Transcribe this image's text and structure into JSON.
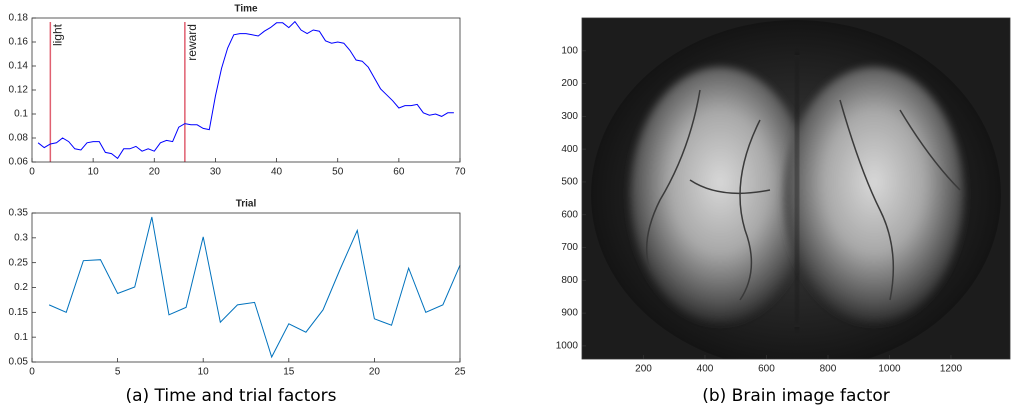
{
  "chart_data": [
    {
      "type": "line",
      "title": "Time",
      "x": [
        1,
        2,
        3,
        4,
        5,
        6,
        7,
        8,
        9,
        10,
        11,
        12,
        13,
        14,
        15,
        16,
        17,
        18,
        19,
        20,
        21,
        22,
        23,
        24,
        25,
        26,
        27,
        28,
        29,
        30,
        31,
        32,
        33,
        34,
        35,
        36,
        37,
        38,
        39,
        40,
        41,
        42,
        43,
        44,
        45,
        46,
        47,
        48,
        49,
        50,
        51,
        52,
        53,
        54,
        55,
        56,
        57,
        58,
        59,
        60,
        61,
        62,
        63,
        64,
        65,
        66,
        67,
        68,
        69
      ],
      "values": [
        0.076,
        0.072,
        0.075,
        0.076,
        0.08,
        0.077,
        0.071,
        0.07,
        0.076,
        0.077,
        0.077,
        0.068,
        0.067,
        0.063,
        0.071,
        0.071,
        0.073,
        0.069,
        0.071,
        0.069,
        0.076,
        0.078,
        0.077,
        0.089,
        0.092,
        0.091,
        0.091,
        0.088,
        0.087,
        0.115,
        0.138,
        0.155,
        0.166,
        0.167,
        0.167,
        0.166,
        0.165,
        0.169,
        0.172,
        0.176,
        0.176,
        0.172,
        0.177,
        0.17,
        0.167,
        0.17,
        0.169,
        0.161,
        0.159,
        0.16,
        0.159,
        0.153,
        0.145,
        0.144,
        0.139,
        0.13,
        0.121,
        0.116,
        0.111,
        0.105,
        0.107,
        0.107,
        0.108,
        0.101,
        0.099,
        0.1,
        0.098,
        0.101,
        0.101
      ],
      "color": "#0000ff",
      "annotations": [
        {
          "x": 3,
          "label": "light"
        },
        {
          "x": 25,
          "label": "reward"
        }
      ],
      "annotation_color": "#e06070",
      "xlim": [
        0,
        70
      ],
      "xticks": [
        0,
        10,
        20,
        30,
        40,
        50,
        60,
        70
      ],
      "ylim": [
        0.06,
        0.18
      ],
      "yticks": [
        0.06,
        0.08,
        0.1,
        0.12,
        0.14,
        0.16,
        0.18
      ]
    },
    {
      "type": "line",
      "title": "Trial",
      "x": [
        1,
        2,
        3,
        4,
        5,
        6,
        7,
        8,
        9,
        10,
        11,
        12,
        13,
        14,
        15,
        16,
        17,
        18,
        19,
        20,
        21,
        22,
        23,
        24,
        25
      ],
      "values": [
        0.165,
        0.15,
        0.254,
        0.256,
        0.188,
        0.201,
        0.342,
        0.145,
        0.16,
        0.302,
        0.13,
        0.165,
        0.17,
        0.06,
        0.127,
        0.11,
        0.155,
        0.237,
        0.315,
        0.137,
        0.124,
        0.239,
        0.15,
        0.165,
        0.245
      ],
      "color": "#0072bd",
      "xlim": [
        0,
        25
      ],
      "xticks": [
        0,
        5,
        10,
        15,
        20,
        25
      ],
      "ylim": [
        0.05,
        0.35
      ],
      "yticks": [
        0.05,
        0.1,
        0.15,
        0.2,
        0.25,
        0.3,
        0.35
      ]
    },
    {
      "type": "image",
      "xlim": [
        0,
        1392
      ],
      "xticks": [
        200,
        400,
        600,
        800,
        1000,
        1200
      ],
      "ylim": [
        0,
        1040
      ],
      "yticks": [
        100,
        200,
        300,
        400,
        500,
        600,
        700,
        800,
        900,
        1000
      ],
      "y_reversed": true
    }
  ],
  "captions": [
    "(a) Time and trial factors",
    "(b) Brain image factor"
  ]
}
